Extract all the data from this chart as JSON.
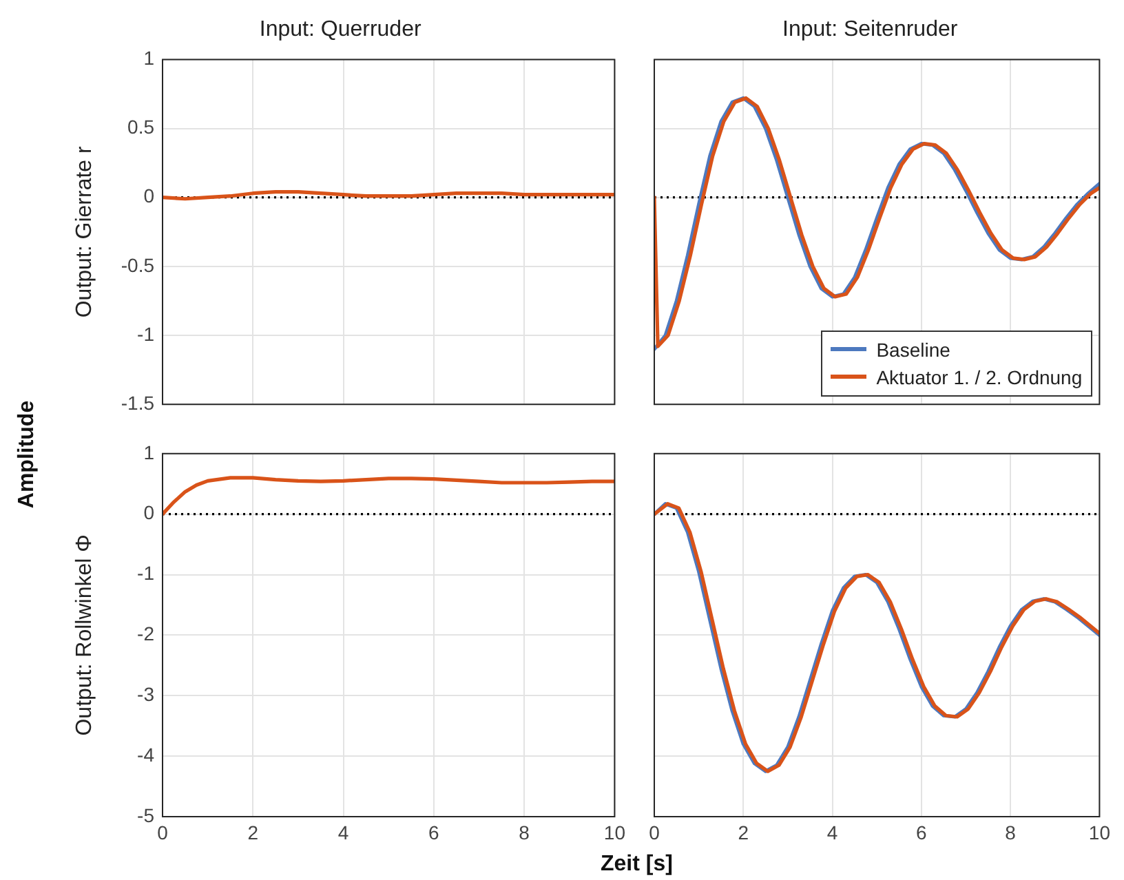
{
  "chart_data": [
    {
      "type": "line",
      "title": "Input: Querruder",
      "ylabel": "Output: Gierrate r",
      "xlim": [
        0,
        10
      ],
      "xticks": [
        0,
        2,
        4,
        6,
        8,
        10
      ],
      "ylim": [
        -1.5,
        1
      ],
      "yticks": [
        -1.5,
        -1,
        -0.5,
        0,
        0.5,
        1
      ],
      "tick_labels": "y",
      "grid": true,
      "annotations": [
        "Amplitude"
      ],
      "ref_lines": [
        {
          "axis": "y",
          "value": 0,
          "color": "#000000",
          "line_style": "dotted"
        }
      ],
      "series": [
        {
          "color": "#d95319",
          "x": [
            0,
            0.5,
            1,
            1.5,
            2,
            2.5,
            3,
            3.5,
            4,
            4.5,
            5,
            5.5,
            6,
            6.5,
            7,
            7.5,
            8,
            8.5,
            9,
            9.5,
            10
          ],
          "values": [
            0,
            -0.01,
            0,
            0.01,
            0.03,
            0.04,
            0.04,
            0.03,
            0.02,
            0.01,
            0.01,
            0.01,
            0.02,
            0.03,
            0.03,
            0.03,
            0.02,
            0.02,
            0.02,
            0.02,
            0.02
          ]
        }
      ]
    },
    {
      "type": "line",
      "title": "Input: Seitenruder",
      "xlim": [
        0,
        10
      ],
      "xticks": [
        0,
        2,
        4,
        6,
        8,
        10
      ],
      "ylim": [
        -1.5,
        1
      ],
      "yticks": [
        -1.5,
        -1,
        -0.5,
        0,
        0.5,
        1
      ],
      "tick_labels": false,
      "grid": true,
      "legend": "bottom right",
      "ref_lines": [
        {
          "axis": "y",
          "value": 0,
          "color": "#000000",
          "line_style": "dotted"
        }
      ],
      "series": [
        {
          "name": "Baseline",
          "color": "#4d79bf",
          "x": [
            0,
            0.25,
            0.5,
            0.75,
            1,
            1.25,
            1.5,
            1.75,
            2,
            2.25,
            2.5,
            2.75,
            3,
            3.25,
            3.5,
            3.75,
            4,
            4.25,
            4.5,
            4.75,
            5,
            5.25,
            5.5,
            5.75,
            6,
            6.25,
            6.5,
            6.75,
            7,
            7.25,
            7.5,
            7.75,
            8,
            8.25,
            8.5,
            8.75,
            9,
            9.25,
            9.5,
            9.75,
            10
          ],
          "values": [
            -1.1,
            -1.0,
            -0.75,
            -0.42,
            -0.05,
            0.3,
            0.55,
            0.69,
            0.72,
            0.66,
            0.5,
            0.27,
            0.0,
            -0.27,
            -0.5,
            -0.66,
            -0.72,
            -0.7,
            -0.58,
            -0.38,
            -0.15,
            0.07,
            0.24,
            0.35,
            0.39,
            0.38,
            0.32,
            0.2,
            0.05,
            -0.11,
            -0.26,
            -0.38,
            -0.44,
            -0.45,
            -0.43,
            -0.36,
            -0.26,
            -0.15,
            -0.05,
            0.03,
            0.1
          ]
        },
        {
          "name": "Aktuator 1. / 2. Ordnung",
          "color": "#d95319",
          "x": [
            0,
            0.08,
            0.31,
            0.56,
            0.81,
            1.06,
            1.31,
            1.56,
            1.81,
            2.06,
            2.31,
            2.56,
            2.81,
            3.06,
            3.31,
            3.56,
            3.81,
            4.06,
            4.31,
            4.56,
            4.81,
            5.06,
            5.31,
            5.56,
            5.81,
            6.06,
            6.31,
            6.56,
            6.81,
            7.06,
            7.31,
            7.56,
            7.81,
            8.06,
            8.31,
            8.56,
            8.81,
            9.06,
            9.31,
            9.56,
            9.81,
            10
          ],
          "values": [
            0,
            -1.08,
            -1.0,
            -0.75,
            -0.42,
            -0.05,
            0.3,
            0.55,
            0.69,
            0.72,
            0.66,
            0.5,
            0.27,
            0.0,
            -0.27,
            -0.5,
            -0.66,
            -0.72,
            -0.7,
            -0.58,
            -0.38,
            -0.15,
            0.07,
            0.24,
            0.35,
            0.39,
            0.38,
            0.32,
            0.2,
            0.05,
            -0.11,
            -0.26,
            -0.38,
            -0.44,
            -0.45,
            -0.43,
            -0.36,
            -0.26,
            -0.15,
            -0.05,
            0.03,
            0.07
          ]
        }
      ]
    },
    {
      "type": "line",
      "ylabel": "Output: Rollwinkel Φ",
      "xlim": [
        0,
        10
      ],
      "xticks": [
        0,
        2,
        4,
        6,
        8,
        10
      ],
      "ylim": [
        -5,
        1
      ],
      "yticks": [
        -5,
        -4,
        -3,
        -2,
        -1,
        0,
        1
      ],
      "grid": true,
      "annotations": [
        "Zeit [s]"
      ],
      "ref_lines": [
        {
          "axis": "y",
          "value": 0,
          "color": "#000000",
          "line_style": "dotted"
        }
      ],
      "series": [
        {
          "color": "#d95319",
          "x": [
            0,
            0.25,
            0.5,
            0.75,
            1,
            1.5,
            2,
            2.5,
            3,
            3.5,
            4,
            4.5,
            5,
            5.5,
            6,
            6.5,
            7,
            7.5,
            8,
            8.5,
            9,
            9.5,
            10
          ],
          "values": [
            0,
            0.2,
            0.37,
            0.48,
            0.55,
            0.6,
            0.6,
            0.57,
            0.55,
            0.54,
            0.55,
            0.57,
            0.59,
            0.59,
            0.58,
            0.56,
            0.54,
            0.52,
            0.52,
            0.52,
            0.53,
            0.54,
            0.54
          ]
        }
      ]
    },
    {
      "type": "line",
      "xlim": [
        0,
        10
      ],
      "xticks": [
        0,
        2,
        4,
        6,
        8,
        10
      ],
      "ylim": [
        -5,
        1
      ],
      "yticks": [
        -5,
        -4,
        -3,
        -2,
        -1,
        0,
        1
      ],
      "tick_labels": "x",
      "grid": true,
      "ref_lines": [
        {
          "axis": "y",
          "value": 0,
          "color": "#000000",
          "line_style": "dotted"
        }
      ],
      "series": [
        {
          "color": "#4d79bf",
          "x": [
            0,
            0.25,
            0.5,
            0.75,
            1,
            1.25,
            1.5,
            1.75,
            2,
            2.25,
            2.5,
            2.75,
            3,
            3.25,
            3.5,
            3.75,
            4,
            4.25,
            4.5,
            4.75,
            5,
            5.25,
            5.5,
            5.75,
            6,
            6.25,
            6.5,
            6.75,
            7,
            7.25,
            7.5,
            7.75,
            8,
            8.25,
            8.5,
            8.75,
            9,
            9.25,
            9.5,
            9.75,
            10
          ],
          "values": [
            0,
            0.17,
            0.1,
            -0.3,
            -0.95,
            -1.75,
            -2.55,
            -3.25,
            -3.8,
            -4.12,
            -4.25,
            -4.15,
            -3.85,
            -3.35,
            -2.75,
            -2.15,
            -1.6,
            -1.22,
            -1.03,
            -1.0,
            -1.13,
            -1.45,
            -1.9,
            -2.4,
            -2.85,
            -3.17,
            -3.33,
            -3.35,
            -3.22,
            -2.95,
            -2.6,
            -2.2,
            -1.85,
            -1.58,
            -1.44,
            -1.4,
            -1.45,
            -1.57,
            -1.7,
            -1.85,
            -2.0
          ]
        },
        {
          "color": "#d95319",
          "x": [
            0,
            0.3,
            0.55,
            0.8,
            1.05,
            1.3,
            1.55,
            1.8,
            2.05,
            2.3,
            2.55,
            2.8,
            3.05,
            3.3,
            3.55,
            3.8,
            4.05,
            4.3,
            4.55,
            4.8,
            5.05,
            5.3,
            5.55,
            5.8,
            6.05,
            6.3,
            6.55,
            6.8,
            7.05,
            7.3,
            7.55,
            7.8,
            8.05,
            8.3,
            8.55,
            8.8,
            9.05,
            9.3,
            9.55,
            9.8,
            10
          ],
          "values": [
            0,
            0.17,
            0.1,
            -0.3,
            -0.95,
            -1.75,
            -2.55,
            -3.25,
            -3.8,
            -4.12,
            -4.25,
            -4.15,
            -3.85,
            -3.35,
            -2.75,
            -2.15,
            -1.6,
            -1.22,
            -1.03,
            -1.0,
            -1.13,
            -1.45,
            -1.9,
            -2.4,
            -2.85,
            -3.17,
            -3.33,
            -3.35,
            -3.22,
            -2.95,
            -2.6,
            -2.2,
            -1.85,
            -1.58,
            -1.44,
            -1.4,
            -1.45,
            -1.57,
            -1.7,
            -1.85,
            -1.97
          ]
        }
      ]
    }
  ]
}
